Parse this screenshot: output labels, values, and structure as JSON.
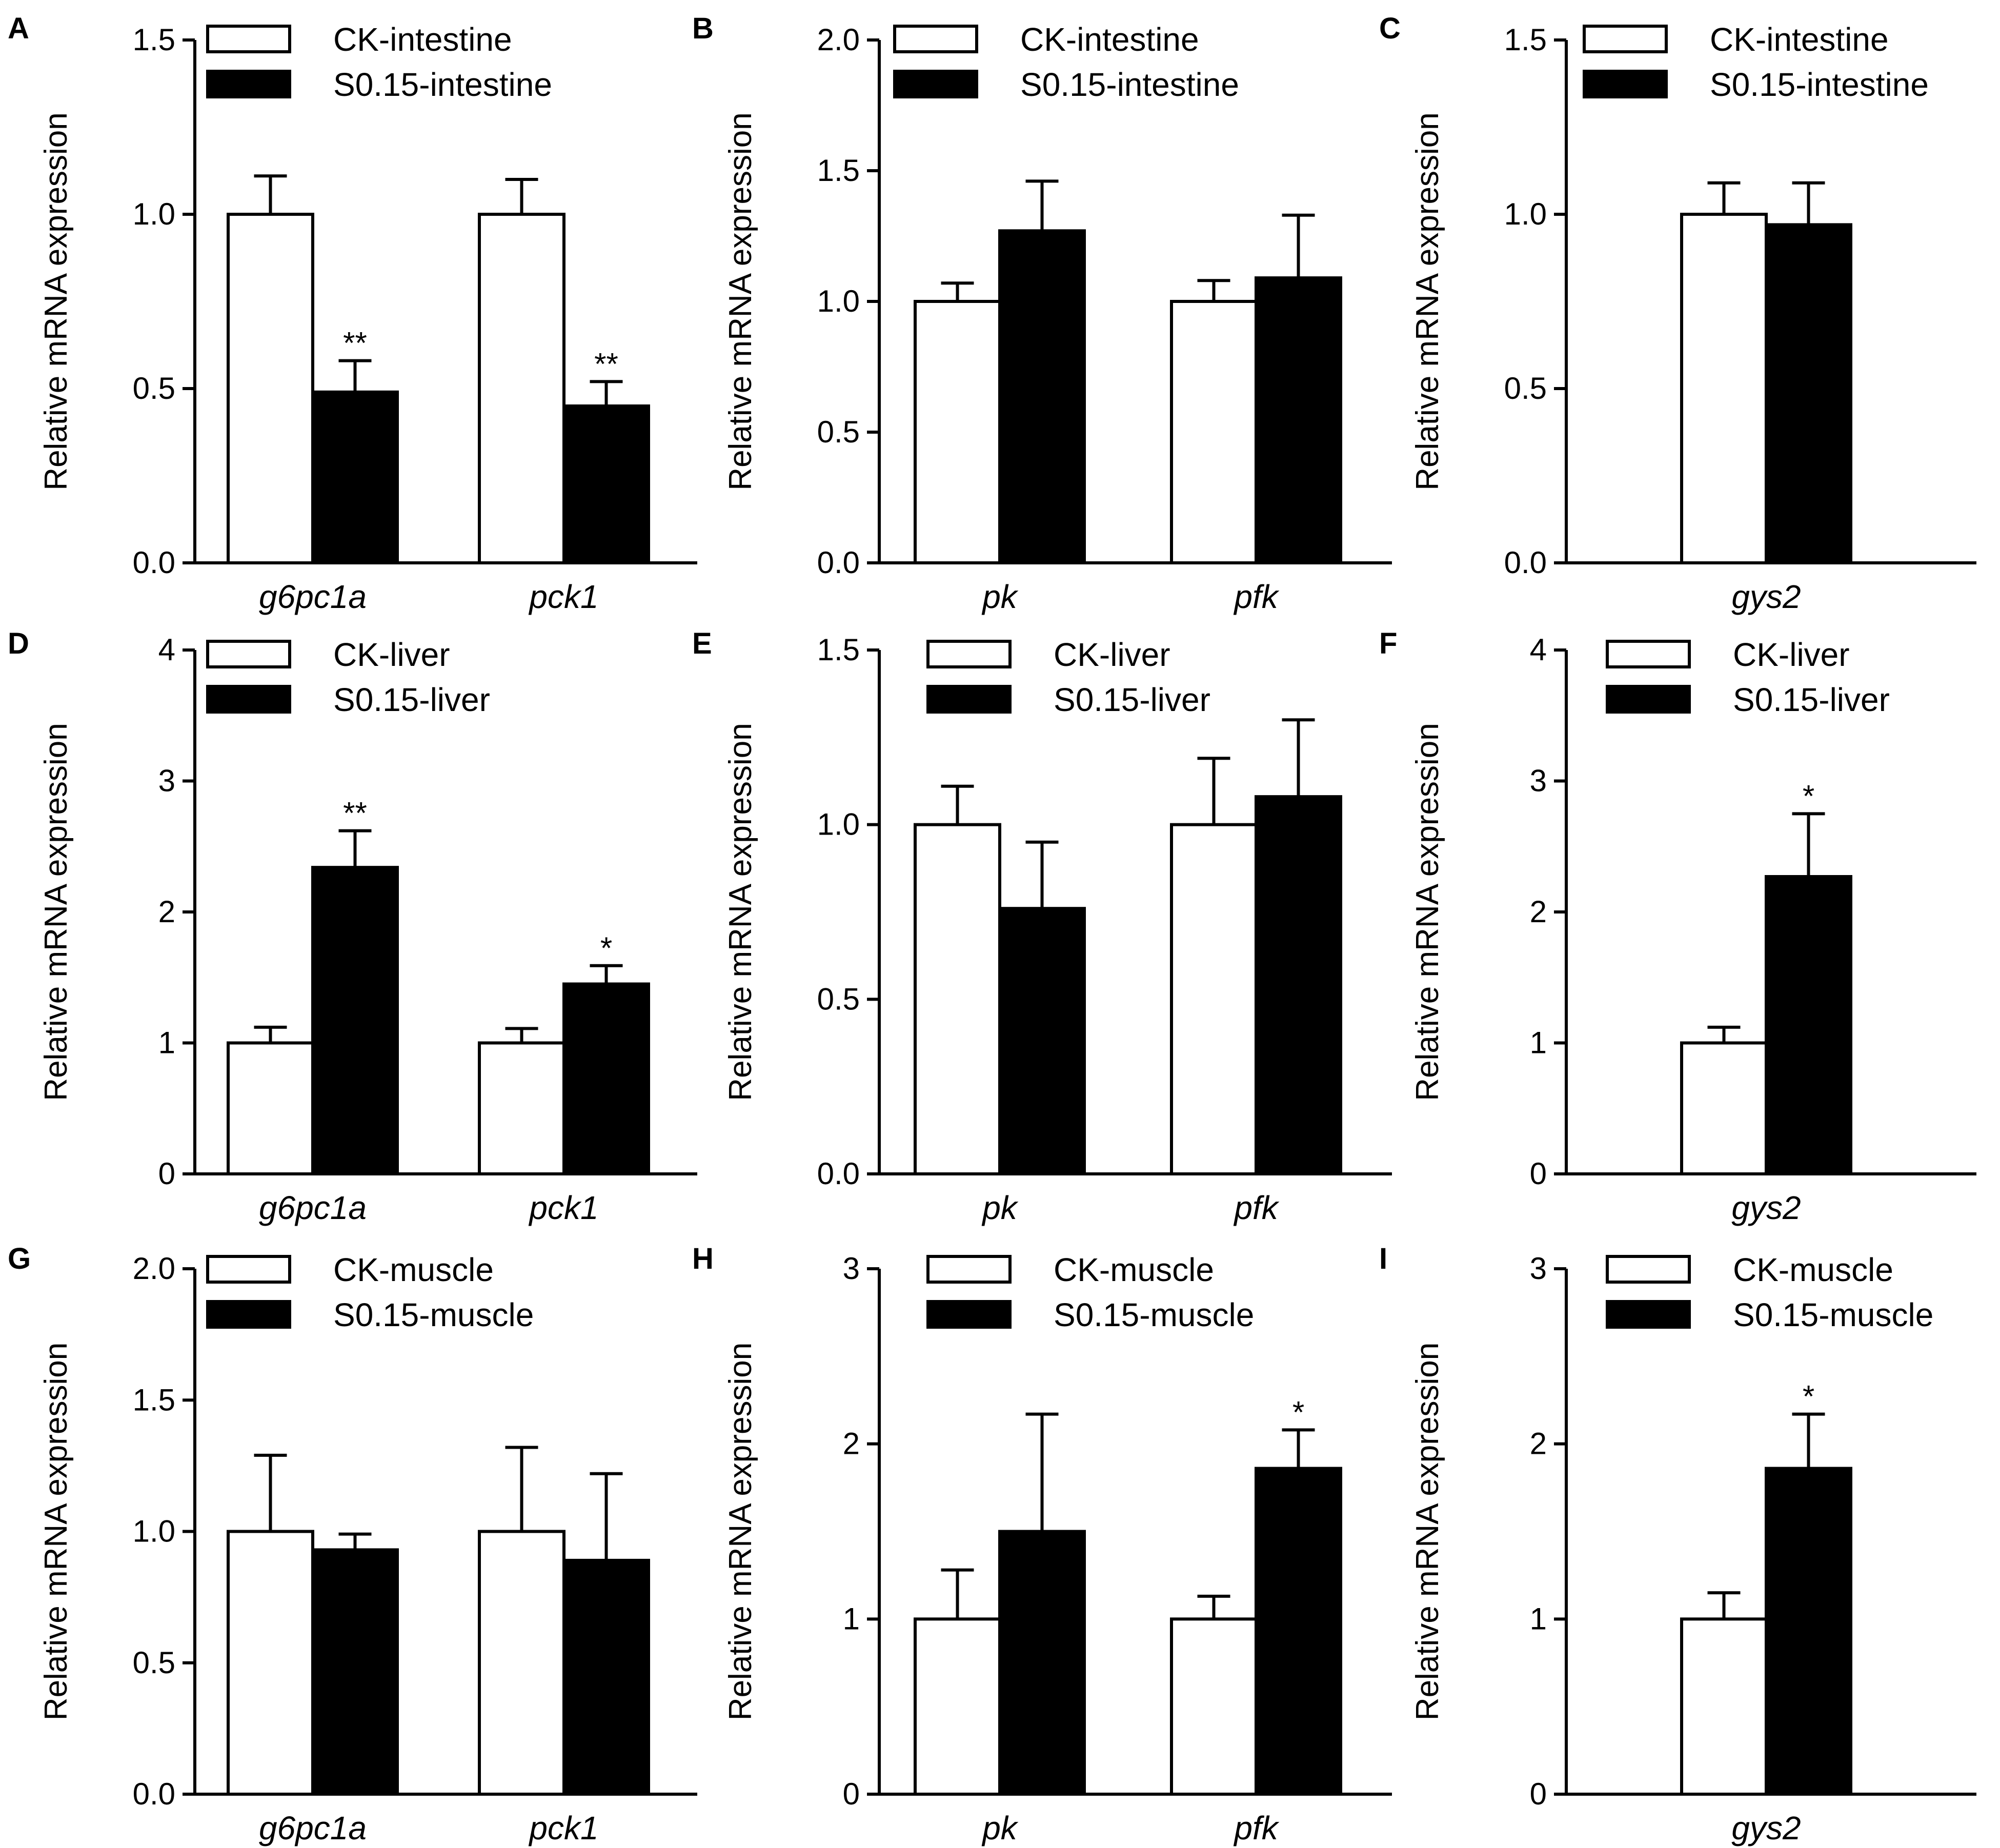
{
  "chart_data": [
    {
      "panel": "A",
      "type": "bar",
      "ylabel": "Relative mRNA expression",
      "yticks": [
        "0.0",
        "0.5",
        "1.0",
        "1.5"
      ],
      "ylim": [
        0,
        1.5
      ],
      "categories": [
        "g6pc1a",
        "pck1"
      ],
      "series": [
        {
          "name": "CK-intestine",
          "values": [
            1.0,
            1.0
          ],
          "errors": [
            0.11,
            0.1
          ],
          "sig": [
            "",
            ""
          ]
        },
        {
          "name": "S0.15-intestine",
          "values": [
            0.49,
            0.45
          ],
          "errors": [
            0.09,
            0.07
          ],
          "sig": [
            "**",
            "**"
          ]
        }
      ]
    },
    {
      "panel": "B",
      "type": "bar",
      "ylabel": "Relative mRNA expression",
      "yticks": [
        "0.0",
        "0.5",
        "1.0",
        "1.5",
        "2.0"
      ],
      "ylim": [
        0,
        2.0
      ],
      "categories": [
        "pk",
        "pfk"
      ],
      "series": [
        {
          "name": "CK-intestine",
          "values": [
            1.0,
            1.0
          ],
          "errors": [
            0.07,
            0.08
          ],
          "sig": [
            "",
            ""
          ]
        },
        {
          "name": "S0.15-intestine",
          "values": [
            1.27,
            1.09
          ],
          "errors": [
            0.19,
            0.24
          ],
          "sig": [
            "",
            ""
          ]
        }
      ]
    },
    {
      "panel": "C",
      "type": "bar",
      "ylabel": "Relative mRNA expression",
      "yticks": [
        "0.0",
        "0.5",
        "1.0",
        "1.5"
      ],
      "ylim": [
        0,
        1.5
      ],
      "categories": [
        "gys2"
      ],
      "series": [
        {
          "name": "CK-intestine",
          "values": [
            1.0
          ],
          "errors": [
            0.09
          ],
          "sig": [
            ""
          ]
        },
        {
          "name": "S0.15-intestine",
          "values": [
            0.97
          ],
          "errors": [
            0.12
          ],
          "sig": [
            ""
          ]
        }
      ]
    },
    {
      "panel": "D",
      "type": "bar",
      "ylabel": "Relative mRNA expression",
      "yticks": [
        "0",
        "1",
        "2",
        "3",
        "4"
      ],
      "ylim": [
        0,
        4
      ],
      "categories": [
        "g6pc1a",
        "pck1"
      ],
      "series": [
        {
          "name": "CK-liver",
          "values": [
            1.0,
            1.0
          ],
          "errors": [
            0.12,
            0.11
          ],
          "sig": [
            "",
            ""
          ]
        },
        {
          "name": "S0.15-liver",
          "values": [
            2.34,
            1.45
          ],
          "errors": [
            0.28,
            0.14
          ],
          "sig": [
            "**",
            "*"
          ]
        }
      ]
    },
    {
      "panel": "E",
      "type": "bar",
      "ylabel": "Relative mRNA expression",
      "yticks": [
        "0.0",
        "0.5",
        "1.0",
        "1.5"
      ],
      "ylim": [
        0,
        1.5
      ],
      "categories": [
        "pk",
        "pfk"
      ],
      "series": [
        {
          "name": "CK-liver",
          "values": [
            1.0,
            1.0
          ],
          "errors": [
            0.11,
            0.19
          ],
          "sig": [
            "",
            ""
          ]
        },
        {
          "name": "S0.15-liver",
          "values": [
            0.76,
            1.08
          ],
          "errors": [
            0.19,
            0.22
          ],
          "sig": [
            "",
            ""
          ]
        }
      ]
    },
    {
      "panel": "F",
      "type": "bar",
      "ylabel": "Relative mRNA expression",
      "yticks": [
        "0",
        "1",
        "2",
        "3",
        "4"
      ],
      "ylim": [
        0,
        4
      ],
      "categories": [
        "gys2"
      ],
      "series": [
        {
          "name": "CK-liver",
          "values": [
            1.0
          ],
          "errors": [
            0.12
          ],
          "sig": [
            ""
          ]
        },
        {
          "name": "S0.15-liver",
          "values": [
            2.27
          ],
          "errors": [
            0.48
          ],
          "sig": [
            "*"
          ]
        }
      ]
    },
    {
      "panel": "G",
      "type": "bar",
      "ylabel": "Relative mRNA expression",
      "yticks": [
        "0.0",
        "0.5",
        "1.0",
        "1.5",
        "2.0"
      ],
      "ylim": [
        0,
        2.0
      ],
      "categories": [
        "g6pc1a",
        "pck1"
      ],
      "series": [
        {
          "name": "CK-muscle",
          "values": [
            1.0,
            1.0
          ],
          "errors": [
            0.29,
            0.32
          ],
          "sig": [
            "",
            ""
          ]
        },
        {
          "name": "S0.15-muscle",
          "values": [
            0.93,
            0.89
          ],
          "errors": [
            0.06,
            0.33
          ],
          "sig": [
            "",
            ""
          ]
        }
      ]
    },
    {
      "panel": "H",
      "type": "bar",
      "ylabel": "Relative mRNA expression",
      "yticks": [
        "0",
        "1",
        "2",
        "3"
      ],
      "ylim": [
        0,
        3
      ],
      "categories": [
        "pk",
        "pfk"
      ],
      "series": [
        {
          "name": "CK-muscle",
          "values": [
            1.0,
            1.0
          ],
          "errors": [
            0.28,
            0.13
          ],
          "sig": [
            "",
            ""
          ]
        },
        {
          "name": "S0.15-muscle",
          "values": [
            1.5,
            1.86
          ],
          "errors": [
            0.67,
            0.22
          ],
          "sig": [
            "",
            "*"
          ]
        }
      ]
    },
    {
      "panel": "I",
      "type": "bar",
      "ylabel": "Relative mRNA expression",
      "yticks": [
        "0",
        "1",
        "2",
        "3"
      ],
      "ylim": [
        0,
        3
      ],
      "categories": [
        "gys2"
      ],
      "series": [
        {
          "name": "CK-muscle",
          "values": [
            1.0
          ],
          "errors": [
            0.15
          ],
          "sig": [
            ""
          ]
        },
        {
          "name": "S0.15-muscle",
          "values": [
            1.86
          ],
          "errors": [
            0.31
          ],
          "sig": [
            "*"
          ]
        }
      ]
    }
  ]
}
